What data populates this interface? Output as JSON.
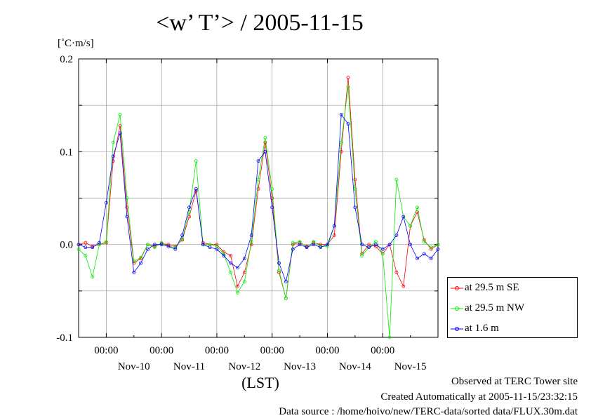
{
  "title": "<w’ T’> / 2005-11-15",
  "yunit": "[˚C·m/s]",
  "xunit": "(LST)",
  "footer": {
    "line1": "Observed at TERC Tower site",
    "line2": "Created Automatically at 2005-11-15/23:32:15",
    "line3": "Data source : /home/hoivo/new/TERC-data/sorted  data/FLUX.30m.dat"
  },
  "legend": [
    {
      "label": "at 29.5 m SE",
      "color": "#ff0000"
    },
    {
      "label": "at 29.5 m NW",
      "color": "#00ee00"
    },
    {
      "label": "at 1.6 m",
      "color": "#0000ff"
    }
  ],
  "chart_data": {
    "type": "line",
    "title": "<w’ T’> / 2005-11-15",
    "ylabel": "[˚C·m/s]",
    "xlabel": "(LST)",
    "ylim": [
      -0.1,
      0.2
    ],
    "yticks": [
      -0.1,
      0.0,
      0.1,
      0.2
    ],
    "ytick_labels": [
      "-0.1",
      "0.0",
      "0.1",
      "0.2"
    ],
    "xlim_days": [
      "2005-11-09T12:00",
      "2005-11-15T24:00"
    ],
    "xticks": [
      "2005-11-10T00:00",
      "2005-11-11T00:00",
      "2005-11-12T00:00",
      "2005-11-13T00:00",
      "2005-11-14T00:00",
      "2005-11-15T00:00"
    ],
    "xtick_labels": [
      "00:00",
      "00:00",
      "00:00",
      "00:00",
      "00:00",
      "00:00"
    ],
    "date_labels": [
      "Nov-10",
      "Nov-11",
      "Nov-12",
      "Nov-13",
      "Nov-14",
      "Nov-15"
    ],
    "grid": true,
    "legend_position": "right-bottom",
    "marker": "circle",
    "series": [
      {
        "name": "at 29.5 m SE",
        "color": "#ff0000",
        "x": [
          "11-09 12:00",
          "11-09 15:00",
          "11-09 18:00",
          "11-09 21:00",
          "11-10 00:00",
          "11-10 03:00",
          "11-10 06:00",
          "11-10 09:00",
          "11-10 12:00",
          "11-10 15:00",
          "11-10 18:00",
          "11-10 21:00",
          "11-11 00:00",
          "11-11 03:00",
          "11-11 06:00",
          "11-11 09:00",
          "11-11 12:00",
          "11-11 15:00",
          "11-11 18:00",
          "11-11 21:00",
          "11-12 00:00",
          "11-12 03:00",
          "11-12 06:00",
          "11-12 09:00",
          "11-12 12:00",
          "11-12 15:00",
          "11-12 18:00",
          "11-12 21:00",
          "11-13 00:00",
          "11-13 03:00",
          "11-13 06:00",
          "11-13 09:00",
          "11-13 12:00",
          "11-13 15:00",
          "11-13 18:00",
          "11-13 21:00",
          "11-14 00:00",
          "11-14 03:00",
          "11-14 06:00",
          "11-14 09:00",
          "11-14 12:00",
          "11-14 15:00",
          "11-14 18:00",
          "11-14 21:00",
          "11-15 00:00",
          "11-15 03:00",
          "11-15 06:00",
          "11-15 09:00",
          "11-15 12:00",
          "11-15 15:00",
          "11-15 18:00",
          "11-15 21:00",
          "11-15 24:00"
        ],
        "values": [
          0.0,
          0.002,
          -0.002,
          0.0,
          0.002,
          0.09,
          0.128,
          0.04,
          -0.02,
          -0.015,
          0.0,
          -0.002,
          0.001,
          0.0,
          -0.002,
          0.005,
          0.03,
          0.058,
          0.002,
          0.0,
          0.0,
          -0.008,
          -0.012,
          -0.045,
          -0.03,
          0.0,
          0.06,
          0.11,
          0.05,
          -0.03,
          -0.058,
          0.0,
          0.002,
          -0.002,
          0.002,
          0.0,
          0.0,
          0.01,
          0.1,
          0.18,
          0.07,
          -0.01,
          0.0,
          -0.002,
          -0.01,
          0.0,
          -0.03,
          -0.045,
          0.02,
          0.035,
          0.005,
          -0.005,
          0.0
        ]
      },
      {
        "name": "at 29.5 m NW",
        "color": "#00ee00",
        "x": [
          "11-09 12:00",
          "11-09 15:00",
          "11-09 18:00",
          "11-09 21:00",
          "11-10 00:00",
          "11-10 03:00",
          "11-10 06:00",
          "11-10 09:00",
          "11-10 12:00",
          "11-10 15:00",
          "11-10 18:00",
          "11-10 21:00",
          "11-11 00:00",
          "11-11 03:00",
          "11-11 06:00",
          "11-11 09:00",
          "11-11 12:00",
          "11-11 15:00",
          "11-11 18:00",
          "11-11 21:00",
          "11-12 00:00",
          "11-12 03:00",
          "11-12 06:00",
          "11-12 09:00",
          "11-12 12:00",
          "11-12 15:00",
          "11-12 18:00",
          "11-12 21:00",
          "11-13 00:00",
          "11-13 03:00",
          "11-13 06:00",
          "11-13 09:00",
          "11-13 12:00",
          "11-13 15:00",
          "11-13 18:00",
          "11-13 21:00",
          "11-14 00:00",
          "11-14 03:00",
          "11-14 06:00",
          "11-14 09:00",
          "11-14 12:00",
          "11-14 15:00",
          "11-14 18:00",
          "11-14 21:00",
          "11-15 00:00",
          "11-15 03:00",
          "11-15 06:00",
          "11-15 09:00",
          "11-15 12:00",
          "11-15 15:00",
          "11-15 18:00",
          "11-15 21:00",
          "11-15 24:00"
        ],
        "values": [
          -0.005,
          -0.012,
          -0.035,
          0.0,
          0.003,
          0.11,
          0.14,
          0.05,
          -0.018,
          -0.014,
          0.0,
          -0.003,
          0.002,
          -0.002,
          -0.003,
          0.006,
          0.035,
          0.09,
          0.0,
          0.0,
          -0.002,
          -0.01,
          -0.03,
          -0.052,
          -0.04,
          0.003,
          0.07,
          0.115,
          0.06,
          -0.028,
          -0.058,
          0.002,
          0.003,
          -0.003,
          0.003,
          -0.002,
          -0.002,
          0.02,
          0.11,
          0.17,
          0.06,
          -0.012,
          -0.003,
          0.003,
          -0.01,
          -0.1,
          0.07,
          0.03,
          0.02,
          0.04,
          0.003,
          -0.003,
          0.0
        ]
      },
      {
        "name": "at 1.6 m",
        "color": "#0000ff",
        "x": [
          "11-09 12:00",
          "11-09 15:00",
          "11-09 18:00",
          "11-09 21:00",
          "11-10 00:00",
          "11-10 03:00",
          "11-10 06:00",
          "11-10 09:00",
          "11-10 12:00",
          "11-10 15:00",
          "11-10 18:00",
          "11-10 21:00",
          "11-11 00:00",
          "11-11 03:00",
          "11-11 06:00",
          "11-11 09:00",
          "11-11 12:00",
          "11-11 15:00",
          "11-11 18:00",
          "11-11 21:00",
          "11-12 00:00",
          "11-12 03:00",
          "11-12 06:00",
          "11-12 09:00",
          "11-12 12:00",
          "11-12 15:00",
          "11-12 18:00",
          "11-12 21:00",
          "11-13 00:00",
          "11-13 03:00",
          "11-13 06:00",
          "11-13 09:00",
          "11-13 12:00",
          "11-13 15:00",
          "11-13 18:00",
          "11-13 21:00",
          "11-14 00:00",
          "11-14 03:00",
          "11-14 06:00",
          "11-14 09:00",
          "11-14 12:00",
          "11-14 15:00",
          "11-14 18:00",
          "11-14 21:00",
          "11-15 00:00",
          "11-15 03:00",
          "11-15 06:00",
          "11-15 09:00",
          "11-15 12:00",
          "11-15 15:00",
          "11-15 18:00",
          "11-15 21:00",
          "11-15 24:00"
        ],
        "values": [
          0.0,
          -0.003,
          -0.003,
          0.002,
          0.045,
          0.095,
          0.12,
          0.03,
          -0.03,
          -0.02,
          -0.005,
          0.0,
          0.0,
          -0.002,
          -0.005,
          0.01,
          0.04,
          0.06,
          0.0,
          -0.003,
          -0.005,
          -0.012,
          -0.02,
          -0.025,
          -0.015,
          0.01,
          0.09,
          0.1,
          0.04,
          -0.02,
          -0.04,
          -0.005,
          0.0,
          -0.003,
          0.0,
          -0.003,
          0.0,
          0.02,
          0.14,
          0.13,
          0.04,
          0.0,
          -0.003,
          0.0,
          -0.005,
          0.0,
          0.01,
          0.03,
          0.0,
          -0.015,
          -0.01,
          -0.015,
          -0.005
        ]
      }
    ]
  }
}
